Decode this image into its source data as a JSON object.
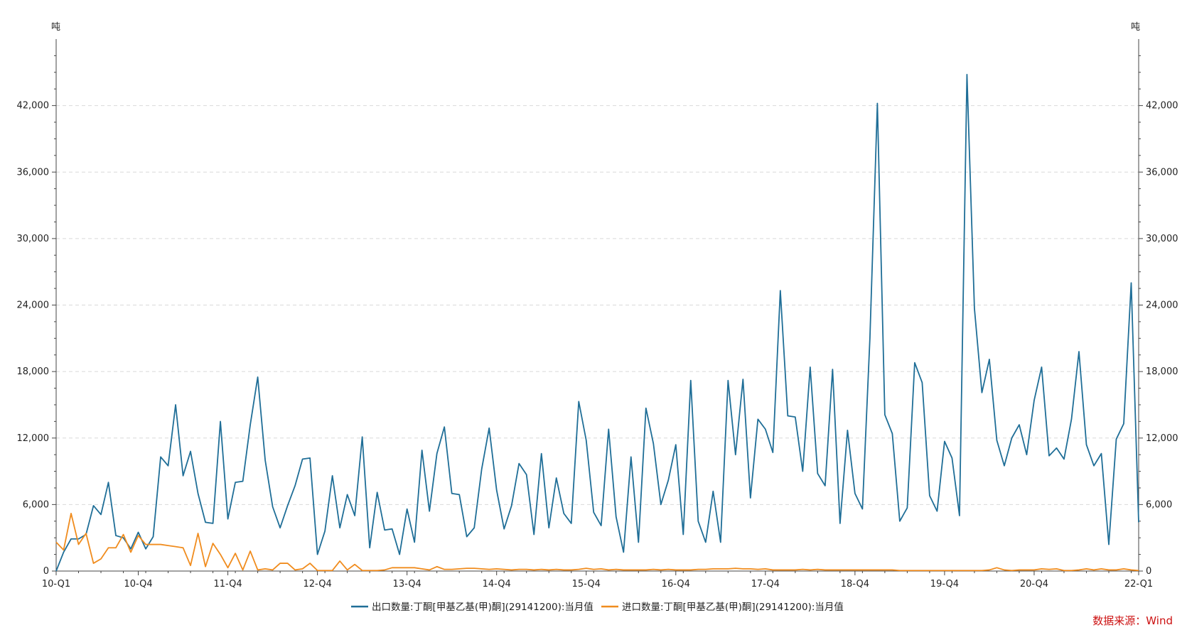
{
  "chart_data": {
    "type": "line",
    "y_unit_left": "吨",
    "y_unit_right": "吨",
    "ylim": [
      0,
      48000
    ],
    "y_ticks": [
      0,
      6000,
      12000,
      18000,
      24000,
      30000,
      36000,
      42000
    ],
    "y_tick_labels": [
      "0",
      "6,000",
      "12,000",
      "18,000",
      "24,000",
      "30,000",
      "36,000",
      "42,000"
    ],
    "x_tick_labels": [
      "10-Q1",
      "10-Q4",
      "11-Q4",
      "12-Q4",
      "13-Q4",
      "14-Q4",
      "15-Q4",
      "16-Q4",
      "17-Q4",
      "18-Q4",
      "19-Q4",
      "20-Q4",
      "22-Q1"
    ],
    "x_tick_index": [
      0,
      11,
      23,
      35,
      47,
      59,
      71,
      83,
      95,
      107,
      119,
      131,
      145
    ],
    "grid": true,
    "legend_position": "bottom",
    "source": "数据来源：Wind",
    "series": [
      {
        "name": "出口数量:丁酮[甲基乙基(甲)酮](29141200):当月值",
        "color": "#1f6e97",
        "values": [
          0,
          1700,
          2900,
          2900,
          3300,
          5900,
          5100,
          8000,
          3200,
          3000,
          2000,
          3500,
          2000,
          3100,
          10300,
          9500,
          15000,
          8600,
          10800,
          7000,
          4400,
          4300,
          13500,
          4700,
          8000,
          8100,
          13200,
          17500,
          10000,
          5800,
          3900,
          5900,
          7700,
          10100,
          10200,
          1500,
          3600,
          8600,
          3900,
          6900,
          5000,
          12100,
          2100,
          7100,
          3700,
          3800,
          1500,
          5600,
          2600,
          10900,
          5400,
          10600,
          13000,
          7000,
          6900,
          3100,
          3900,
          9200,
          12900,
          7300,
          3800,
          5900,
          9700,
          8700,
          3300,
          10600,
          3900,
          8400,
          5200,
          4300,
          15300,
          11800,
          5300,
          4100,
          12800,
          4900,
          1700,
          10300,
          2600,
          14700,
          11500,
          6000,
          8200,
          11400,
          3300,
          17200,
          4500,
          2600,
          7200,
          2600,
          17200,
          10500,
          17300,
          6600,
          13700,
          12800,
          10700,
          25300,
          14000,
          13900,
          9000,
          18400,
          8800,
          7700,
          18200,
          4300,
          12700,
          7000,
          5600,
          21000,
          42200,
          14100,
          12400,
          4500,
          5700,
          18800,
          17000,
          6800,
          5400,
          11700,
          10200,
          5000,
          44800,
          23700,
          16100,
          19100,
          11800,
          9500,
          12000,
          13200,
          10500,
          15400,
          18400,
          10400,
          11100,
          10100,
          13700,
          19800,
          11400,
          9500,
          10600,
          2400,
          11900,
          13300,
          26000,
          4400
        ]
      },
      {
        "name": "进口数量:丁酮[甲基乙基(甲)酮](29141200):当月值",
        "color": "#f08c1e",
        "values": [
          2600,
          1900,
          5200,
          2400,
          3400,
          700,
          1100,
          2100,
          2100,
          3300,
          1700,
          3200,
          2400,
          2400,
          2400,
          2300,
          2200,
          2100,
          500,
          3400,
          400,
          2500,
          1500,
          300,
          1600,
          100,
          1800,
          100,
          200,
          100,
          700,
          700,
          100,
          200,
          700,
          50,
          50,
          50,
          900,
          100,
          600,
          50,
          50,
          50,
          100,
          300,
          300,
          300,
          300,
          200,
          100,
          400,
          150,
          150,
          200,
          250,
          250,
          200,
          150,
          200,
          150,
          100,
          150,
          150,
          100,
          150,
          100,
          150,
          100,
          100,
          150,
          250,
          150,
          200,
          100,
          150,
          100,
          100,
          100,
          100,
          150,
          100,
          150,
          100,
          100,
          100,
          150,
          150,
          200,
          200,
          200,
          250,
          200,
          200,
          150,
          200,
          100,
          100,
          100,
          100,
          150,
          100,
          150,
          100,
          100,
          100,
          100,
          100,
          100,
          100,
          100,
          100,
          100,
          50,
          50,
          50,
          50,
          50,
          50,
          50,
          50,
          50,
          50,
          50,
          50,
          100,
          300,
          100,
          50,
          100,
          100,
          100,
          200,
          150,
          200,
          50,
          50,
          100,
          200,
          100,
          200,
          100,
          100,
          200,
          100,
          50
        ]
      }
    ]
  }
}
